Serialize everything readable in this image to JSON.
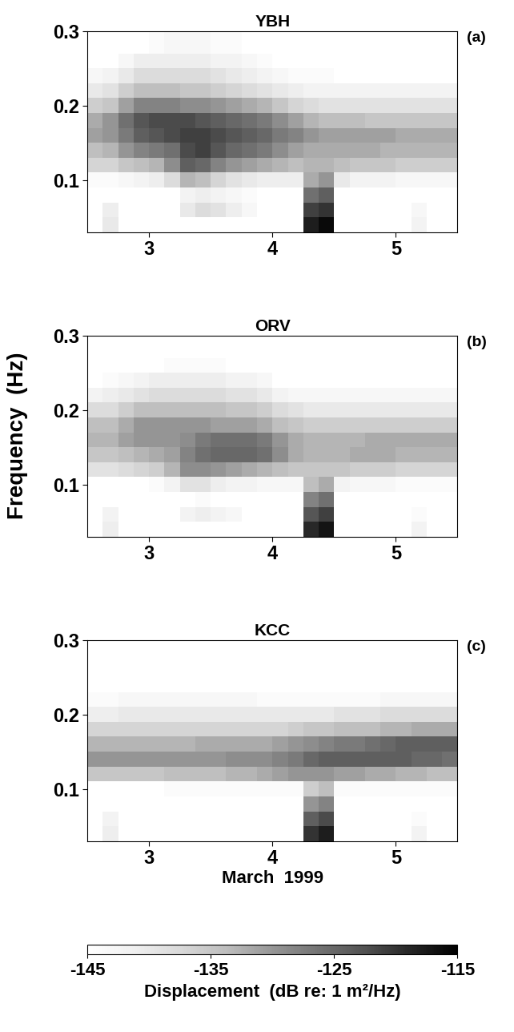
{
  "figure": {
    "y_label": "Frequency  (Hz)",
    "colorbar": {
      "label": "Displacement  (dB re: 1 m²/Hz)",
      "range": [
        -145,
        -115
      ],
      "ticks": [
        -145,
        -135,
        -125,
        -115
      ]
    }
  },
  "chart_data": [
    {
      "type": "heatmap",
      "title": "YBH",
      "panel_label": "(a)",
      "xlim": [
        2.5,
        5.5
      ],
      "ylim": [
        0.03,
        0.3
      ],
      "xticks": [
        3,
        4,
        5
      ],
      "yticks": [
        0.1,
        0.2,
        0.3
      ],
      "x_edges": [
        2.5,
        2.625,
        2.75,
        2.875,
        3.0,
        3.125,
        3.25,
        3.375,
        3.5,
        3.625,
        3.75,
        3.875,
        4.0,
        4.125,
        4.25,
        4.375,
        4.5,
        4.625,
        4.75,
        4.875,
        5.0,
        5.125,
        5.25,
        5.375,
        5.5
      ],
      "y_edges": [
        0.03,
        0.05,
        0.07,
        0.09,
        0.11,
        0.13,
        0.15,
        0.17,
        0.19,
        0.21,
        0.23,
        0.25,
        0.27,
        0.3
      ],
      "cells": [
        [
          -150,
          -140,
          -150,
          -150,
          -150,
          -150,
          -150,
          -150,
          -150,
          -150,
          -150,
          -150,
          -150,
          -150,
          -118,
          -116,
          -150,
          -150,
          -150,
          -150,
          -150,
          -142,
          -150,
          -150
        ],
        [
          -150,
          -141,
          -150,
          -150,
          -150,
          -146,
          -140,
          -138,
          -139,
          -141,
          -143,
          -146,
          -150,
          -150,
          -121,
          -120,
          -150,
          -150,
          -150,
          -150,
          -150,
          -143,
          -150,
          -150
        ],
        [
          -150,
          -146,
          -150,
          -150,
          -150,
          -146,
          -142,
          -141,
          -142,
          -143,
          -144,
          -146,
          -150,
          -150,
          -126,
          -124,
          -146,
          -150,
          -150,
          -150,
          -150,
          -148,
          -150,
          -150
        ],
        [
          -144,
          -144,
          -143,
          -142,
          -141,
          -138,
          -133,
          -134,
          -137,
          -139,
          -140,
          -141,
          -141,
          -141,
          -132,
          -130,
          -140,
          -142,
          -142,
          -142,
          -143,
          -143,
          -143,
          -143
        ],
        [
          -137,
          -137,
          -135,
          -134,
          -133,
          -129,
          -124,
          -125,
          -128,
          -130,
          -131,
          -132,
          -133,
          -134,
          -133,
          -133,
          -134,
          -135,
          -135,
          -135,
          -136,
          -136,
          -136,
          -136
        ],
        [
          -134,
          -133,
          -130,
          -128,
          -127,
          -126,
          -122,
          -121,
          -123,
          -125,
          -126,
          -127,
          -129,
          -131,
          -132,
          -132,
          -132,
          -132,
          -132,
          -133,
          -133,
          -133,
          -133,
          -133
        ],
        [
          -131,
          -130,
          -127,
          -124,
          -123,
          -122,
          -121,
          -121,
          -122,
          -123,
          -124,
          -125,
          -127,
          -128,
          -130,
          -131,
          -131,
          -131,
          -131,
          -131,
          -132,
          -132,
          -132,
          -132
        ],
        [
          -132,
          -130,
          -126,
          -123,
          -122,
          -122,
          -122,
          -123,
          -124,
          -125,
          -126,
          -127,
          -129,
          -131,
          -133,
          -134,
          -134,
          -134,
          -135,
          -135,
          -135,
          -135,
          -135,
          -135
        ],
        [
          -136,
          -135,
          -131,
          -128,
          -128,
          -128,
          -129,
          -129,
          -130,
          -131,
          -132,
          -133,
          -135,
          -137,
          -138,
          -139,
          -139,
          -139,
          -139,
          -139,
          -139,
          -139,
          -139,
          -139
        ],
        [
          -140,
          -139,
          -136,
          -134,
          -134,
          -134,
          -135,
          -135,
          -136,
          -137,
          -138,
          -139,
          -140,
          -141,
          -142,
          -142,
          -142,
          -142,
          -142,
          -142,
          -142,
          -142,
          -142,
          -142
        ],
        [
          -143,
          -142,
          -140,
          -138,
          -138,
          -138,
          -138,
          -138,
          -139,
          -140,
          -141,
          -142,
          -143,
          -144,
          -144,
          -144,
          -145,
          -145,
          -145,
          -145,
          -145,
          -145,
          -145,
          -145
        ],
        [
          -146,
          -145,
          -143,
          -141,
          -141,
          -141,
          -141,
          -141,
          -142,
          -142,
          -143,
          -144,
          -145,
          -146,
          -147,
          -147,
          -147,
          -147,
          -147,
          -147,
          -147,
          -147,
          -147,
          -147
        ],
        [
          -148,
          -147,
          -146,
          -145,
          -144,
          -143,
          -143,
          -143,
          -144,
          -144,
          -145,
          -146,
          -147,
          -148,
          -149,
          -149,
          -149,
          -149,
          -149,
          -149,
          -149,
          -149,
          -149,
          -149
        ]
      ]
    },
    {
      "type": "heatmap",
      "title": "ORV",
      "panel_label": "(b)",
      "xlim": [
        2.5,
        5.5
      ],
      "ylim": [
        0.03,
        0.3
      ],
      "xticks": [
        3,
        4,
        5
      ],
      "yticks": [
        0.1,
        0.2,
        0.3
      ],
      "x_edges": [
        2.5,
        2.625,
        2.75,
        2.875,
        3.0,
        3.125,
        3.25,
        3.375,
        3.5,
        3.625,
        3.75,
        3.875,
        4.0,
        4.125,
        4.25,
        4.375,
        4.5,
        4.625,
        4.75,
        4.875,
        5.0,
        5.125,
        5.25,
        5.375,
        5.5
      ],
      "y_edges": [
        0.03,
        0.05,
        0.07,
        0.09,
        0.11,
        0.13,
        0.15,
        0.17,
        0.19,
        0.21,
        0.23,
        0.25,
        0.27,
        0.3
      ],
      "cells": [
        [
          -150,
          -141,
          -150,
          -150,
          -150,
          -150,
          -150,
          -150,
          -150,
          -150,
          -150,
          -150,
          -150,
          -150,
          -119,
          -117,
          -150,
          -150,
          -150,
          -150,
          -150,
          -142,
          -150,
          -150
        ],
        [
          -150,
          -142,
          -150,
          -150,
          -150,
          -147,
          -142,
          -141,
          -142,
          -143,
          -145,
          -148,
          -150,
          -150,
          -123,
          -121,
          -150,
          -150,
          -150,
          -150,
          -150,
          -144,
          -150,
          -150
        ],
        [
          -150,
          -147,
          -150,
          -150,
          -150,
          -148,
          -145,
          -144,
          -145,
          -146,
          -147,
          -149,
          -150,
          -150,
          -128,
          -126,
          -148,
          -150,
          -150,
          -150,
          -150,
          -148,
          -150,
          -150
        ],
        [
          -146,
          -146,
          -145,
          -145,
          -144,
          -142,
          -139,
          -139,
          -141,
          -142,
          -142,
          -143,
          -143,
          -143,
          -134,
          -132,
          -142,
          -143,
          -143,
          -143,
          -144,
          -144,
          -144,
          -144
        ],
        [
          -139,
          -139,
          -138,
          -137,
          -136,
          -133,
          -129,
          -129,
          -130,
          -131,
          -132,
          -133,
          -134,
          -135,
          -135,
          -135,
          -135,
          -136,
          -136,
          -136,
          -137,
          -137,
          -137,
          -137
        ],
        [
          -135,
          -135,
          -134,
          -133,
          -132,
          -131,
          -128,
          -126,
          -125,
          -125,
          -125,
          -126,
          -129,
          -132,
          -133,
          -133,
          -133,
          -132,
          -132,
          -132,
          -133,
          -133,
          -133,
          -133
        ],
        [
          -133,
          -133,
          -131,
          -130,
          -130,
          -130,
          -129,
          -127,
          -126,
          -126,
          -126,
          -127,
          -130,
          -132,
          -133,
          -133,
          -133,
          -133,
          -132,
          -132,
          -132,
          -132,
          -132,
          -132
        ],
        [
          -134,
          -134,
          -132,
          -130,
          -130,
          -130,
          -130,
          -130,
          -131,
          -131,
          -131,
          -132,
          -134,
          -135,
          -136,
          -136,
          -136,
          -136,
          -136,
          -136,
          -136,
          -136,
          -136,
          -136
        ],
        [
          -138,
          -138,
          -136,
          -134,
          -134,
          -134,
          -134,
          -134,
          -134,
          -135,
          -135,
          -136,
          -138,
          -139,
          -140,
          -140,
          -140,
          -140,
          -140,
          -140,
          -140,
          -140,
          -140,
          -140
        ],
        [
          -142,
          -141,
          -140,
          -139,
          -138,
          -138,
          -138,
          -138,
          -138,
          -139,
          -139,
          -140,
          -142,
          -143,
          -143,
          -143,
          -143,
          -143,
          -143,
          -143,
          -143,
          -143,
          -143,
          -143
        ],
        [
          -145,
          -144,
          -143,
          -142,
          -141,
          -141,
          -141,
          -141,
          -141,
          -142,
          -142,
          -143,
          -145,
          -146,
          -146,
          -146,
          -146,
          -146,
          -146,
          -146,
          -146,
          -146,
          -146,
          -146
        ],
        [
          -148,
          -147,
          -146,
          -145,
          -145,
          -144,
          -144,
          -144,
          -144,
          -145,
          -145,
          -146,
          -147,
          -148,
          -148,
          -148,
          -148,
          -148,
          -148,
          -148,
          -148,
          -148,
          -148,
          -148
        ],
        [
          -150,
          -149,
          -149,
          -148,
          -148,
          -147,
          -147,
          -147,
          -147,
          -148,
          -148,
          -149,
          -150,
          -150,
          -150,
          -150,
          -150,
          -150,
          -150,
          -150,
          -150,
          -150,
          -150,
          -150
        ]
      ]
    },
    {
      "type": "heatmap",
      "title": "KCC",
      "panel_label": "(c)",
      "x_label": "March  1999",
      "xlim": [
        2.5,
        5.5
      ],
      "ylim": [
        0.03,
        0.3
      ],
      "xticks": [
        3,
        4,
        5
      ],
      "yticks": [
        0.1,
        0.2,
        0.3
      ],
      "x_edges": [
        2.5,
        2.625,
        2.75,
        2.875,
        3.0,
        3.125,
        3.25,
        3.375,
        3.5,
        3.625,
        3.75,
        3.875,
        4.0,
        4.125,
        4.25,
        4.375,
        4.5,
        4.625,
        4.75,
        4.875,
        5.0,
        5.125,
        5.25,
        5.375,
        5.5
      ],
      "y_edges": [
        0.03,
        0.05,
        0.07,
        0.09,
        0.11,
        0.13,
        0.15,
        0.17,
        0.19,
        0.21,
        0.23,
        0.25,
        0.27,
        0.3
      ],
      "cells": [
        [
          -150,
          -141,
          -150,
          -150,
          -150,
          -150,
          -150,
          -150,
          -150,
          -150,
          -150,
          -150,
          -150,
          -150,
          -120,
          -118,
          -150,
          -150,
          -150,
          -150,
          -150,
          -142,
          -150,
          -150
        ],
        [
          -150,
          -142,
          -150,
          -150,
          -150,
          -150,
          -148,
          -146,
          -145,
          -147,
          -150,
          -150,
          -150,
          -150,
          -124,
          -122,
          -150,
          -150,
          -150,
          -150,
          -150,
          -144,
          -150,
          -150
        ],
        [
          -150,
          -148,
          -150,
          -150,
          -150,
          -150,
          -150,
          -150,
          -150,
          -150,
          -150,
          -150,
          -150,
          -150,
          -130,
          -128,
          -150,
          -150,
          -150,
          -150,
          -150,
          -149,
          -150,
          -150
        ],
        [
          -145,
          -145,
          -145,
          -145,
          -145,
          -144,
          -144,
          -144,
          -144,
          -144,
          -144,
          -144,
          -144,
          -144,
          -136,
          -134,
          -144,
          -144,
          -144,
          -144,
          -144,
          -144,
          -144,
          -144
        ],
        [
          -135,
          -135,
          -135,
          -135,
          -135,
          -134,
          -134,
          -134,
          -134,
          -133,
          -133,
          -132,
          -131,
          -130,
          -130,
          -130,
          -131,
          -131,
          -132,
          -132,
          -133,
          -133,
          -134,
          -134
        ],
        [
          -130,
          -130,
          -130,
          -130,
          -130,
          -130,
          -130,
          -130,
          -130,
          -129,
          -129,
          -129,
          -128,
          -127,
          -125,
          -124,
          -124,
          -124,
          -124,
          -124,
          -124,
          -125,
          -125,
          -126
        ],
        [
          -133,
          -133,
          -133,
          -133,
          -133,
          -133,
          -133,
          -132,
          -132,
          -132,
          -132,
          -132,
          -131,
          -130,
          -129,
          -128,
          -127,
          -127,
          -126,
          -125,
          -124,
          -124,
          -124,
          -124
        ],
        [
          -137,
          -137,
          -137,
          -137,
          -137,
          -137,
          -137,
          -137,
          -137,
          -137,
          -137,
          -137,
          -137,
          -136,
          -135,
          -135,
          -134,
          -134,
          -134,
          -133,
          -133,
          -132,
          -132,
          -132
        ],
        [
          -141,
          -141,
          -140,
          -140,
          -140,
          -140,
          -140,
          -140,
          -140,
          -140,
          -140,
          -140,
          -140,
          -140,
          -140,
          -140,
          -139,
          -139,
          -139,
          -138,
          -138,
          -138,
          -138,
          -138
        ],
        [
          -144,
          -144,
          -143,
          -143,
          -143,
          -143,
          -143,
          -143,
          -143,
          -143,
          -143,
          -144,
          -144,
          -144,
          -144,
          -144,
          -144,
          -144,
          -144,
          -143,
          -143,
          -143,
          -143,
          -143
        ],
        [
          -147,
          -147,
          -147,
          -147,
          -147,
          -147,
          -147,
          -147,
          -147,
          -147,
          -147,
          -147,
          -147,
          -147,
          -147,
          -147,
          -147,
          -147,
          -147,
          -147,
          -147,
          -147,
          -147,
          -147
        ],
        [
          -149,
          -149,
          -149,
          -149,
          -149,
          -149,
          -149,
          -149,
          -149,
          -149,
          -149,
          -149,
          -149,
          -149,
          -149,
          -149,
          -149,
          -149,
          -149,
          -149,
          -149,
          -149,
          -149,
          -149
        ],
        [
          -150,
          -150,
          -150,
          -150,
          -150,
          -150,
          -150,
          -150,
          -150,
          -150,
          -150,
          -150,
          -150,
          -150,
          -150,
          -150,
          -150,
          -150,
          -150,
          -150,
          -150,
          -150,
          -150,
          -150
        ]
      ]
    }
  ]
}
